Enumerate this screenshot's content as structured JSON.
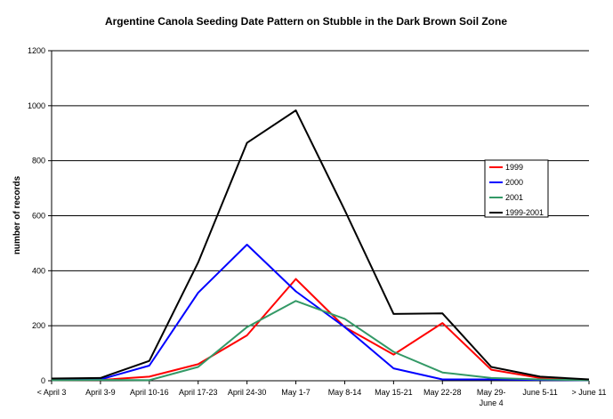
{
  "chart_data": {
    "type": "line",
    "title": "Argentine Canola Seeding Date Pattern on Stubble in the Dark Brown Soil Zone",
    "xlabel": "",
    "ylabel": "number of records",
    "ylim": [
      0,
      1200
    ],
    "yticks": [
      0,
      200,
      400,
      600,
      800,
      1000,
      1200
    ],
    "grid": true,
    "legend_position": "right",
    "categories": [
      [
        "< April 3"
      ],
      [
        "April 3-9"
      ],
      [
        "April 10-16"
      ],
      [
        "April 17-23"
      ],
      [
        "April 24-30"
      ],
      [
        "May 1-7"
      ],
      [
        "May 8-14"
      ],
      [
        "May 15-21"
      ],
      [
        "May 22-28"
      ],
      [
        "May 29-",
        "June 4"
      ],
      [
        "June 5-11"
      ],
      [
        "> June 11"
      ]
    ],
    "series": [
      {
        "name": "1999",
        "color": "#ff0000",
        "values": [
          3,
          3,
          15,
          60,
          165,
          370,
          195,
          95,
          210,
          40,
          10,
          3
        ]
      },
      {
        "name": "2000",
        "color": "#0000ff",
        "values": [
          3,
          5,
          55,
          320,
          495,
          325,
          195,
          45,
          5,
          5,
          3,
          2
        ]
      },
      {
        "name": "2001",
        "color": "#339966",
        "values": [
          2,
          3,
          2,
          50,
          195,
          290,
          225,
          105,
          30,
          10,
          5,
          2
        ]
      },
      {
        "name": "1999-2001",
        "color": "#000000",
        "values": [
          8,
          10,
          72,
          430,
          865,
          983,
          620,
          243,
          245,
          50,
          15,
          5
        ]
      }
    ]
  }
}
